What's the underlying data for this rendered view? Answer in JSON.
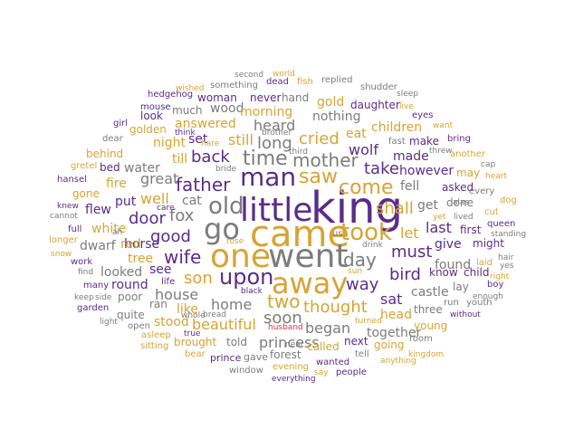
{
  "palette": {
    "gold": "#d8a334",
    "purple": "#5b2c8a",
    "gray": "#7c7c7c",
    "red": "#d8344a"
  },
  "words": [
    {
      "text": "king",
      "color": "purple"
    },
    {
      "text": "came",
      "color": "gold"
    },
    {
      "text": "little",
      "color": "purple"
    },
    {
      "text": "went",
      "color": "gray"
    },
    {
      "text": "one",
      "color": "gold"
    },
    {
      "text": "go",
      "color": "gray"
    },
    {
      "text": "away",
      "color": "gold"
    },
    {
      "text": "man",
      "color": "purple"
    },
    {
      "text": "took",
      "color": "gold"
    },
    {
      "text": "old",
      "color": "gray"
    },
    {
      "text": "upon",
      "color": "purple"
    },
    {
      "text": "time",
      "color": "gray"
    },
    {
      "text": "saw",
      "color": "gold"
    },
    {
      "text": "come",
      "color": "gold"
    },
    {
      "text": "father",
      "color": "purple"
    },
    {
      "text": "mother",
      "color": "gray"
    },
    {
      "text": "day",
      "color": "gray"
    },
    {
      "text": "wife",
      "color": "purple"
    },
    {
      "text": "two",
      "color": "gold"
    },
    {
      "text": "good",
      "color": "purple"
    },
    {
      "text": "thought",
      "color": "gold"
    },
    {
      "text": "back",
      "color": "purple"
    },
    {
      "text": "long",
      "color": "gray"
    },
    {
      "text": "take",
      "color": "purple"
    },
    {
      "text": "shall",
      "color": "gold"
    },
    {
      "text": "cried",
      "color": "gold"
    },
    {
      "text": "way",
      "color": "purple"
    },
    {
      "text": "fox",
      "color": "gray"
    },
    {
      "text": "door",
      "color": "purple"
    },
    {
      "text": "must",
      "color": "purple"
    },
    {
      "text": "bird",
      "color": "purple"
    },
    {
      "text": "son",
      "color": "gold"
    },
    {
      "text": "soon",
      "color": "gray"
    },
    {
      "text": "house",
      "color": "gray"
    },
    {
      "text": "home",
      "color": "gray"
    },
    {
      "text": "beautiful",
      "color": "gold"
    },
    {
      "text": "wolf",
      "color": "purple"
    },
    {
      "text": "great",
      "color": "gray"
    },
    {
      "text": "well",
      "color": "gold"
    },
    {
      "text": "let",
      "color": "gold"
    },
    {
      "text": "sat",
      "color": "purple"
    },
    {
      "text": "last",
      "color": "purple"
    },
    {
      "text": "still",
      "color": "gold"
    },
    {
      "text": "heard",
      "color": "gray"
    },
    {
      "text": "began",
      "color": "gray"
    },
    {
      "text": "princess",
      "color": "gray"
    },
    {
      "text": "together",
      "color": "gray"
    },
    {
      "text": "however",
      "color": "purple"
    },
    {
      "text": "see",
      "color": "purple"
    },
    {
      "text": "like",
      "color": "gold"
    },
    {
      "text": "made",
      "color": "purple"
    },
    {
      "text": "fell",
      "color": "gray"
    },
    {
      "text": "nothing",
      "color": "gray"
    },
    {
      "text": "answered",
      "color": "gold"
    },
    {
      "text": "set",
      "color": "purple"
    },
    {
      "text": "put",
      "color": "purple"
    },
    {
      "text": "tree",
      "color": "gold"
    },
    {
      "text": "cat",
      "color": "gray"
    },
    {
      "text": "get",
      "color": "gray"
    },
    {
      "text": "give",
      "color": "purple"
    },
    {
      "text": "found",
      "color": "gray"
    },
    {
      "text": "head",
      "color": "gold"
    },
    {
      "text": "castle",
      "color": "gray"
    },
    {
      "text": "stood",
      "color": "gold"
    },
    {
      "text": "wood",
      "color": "gray"
    },
    {
      "text": "morning",
      "color": "gold"
    },
    {
      "text": "eat",
      "color": "gold"
    },
    {
      "text": "gold",
      "color": "gold"
    },
    {
      "text": "night",
      "color": "gold"
    },
    {
      "text": "till",
      "color": "gold"
    },
    {
      "text": "water",
      "color": "gray"
    },
    {
      "text": "horse",
      "color": "purple"
    },
    {
      "text": "red",
      "color": "gold"
    },
    {
      "text": "round",
      "color": "purple"
    },
    {
      "text": "looked",
      "color": "gray"
    },
    {
      "text": "dwarf",
      "color": "gray"
    },
    {
      "text": "white",
      "color": "gold"
    },
    {
      "text": "flew",
      "color": "purple"
    },
    {
      "text": "fire",
      "color": "gold"
    },
    {
      "text": "children",
      "color": "gold"
    },
    {
      "text": "make",
      "color": "purple"
    },
    {
      "text": "done",
      "color": "gray"
    },
    {
      "text": "first",
      "color": "purple"
    },
    {
      "text": "might",
      "color": "purple"
    },
    {
      "text": "asked",
      "color": "purple"
    },
    {
      "text": "three",
      "color": "gray"
    },
    {
      "text": "young",
      "color": "gold"
    },
    {
      "text": "next",
      "color": "purple"
    },
    {
      "text": "going",
      "color": "gold"
    },
    {
      "text": "called",
      "color": "gold"
    },
    {
      "text": "told",
      "color": "gray"
    },
    {
      "text": "brought",
      "color": "gold"
    },
    {
      "text": "forest",
      "color": "gray"
    },
    {
      "text": "daughter",
      "color": "purple"
    },
    {
      "text": "never",
      "color": "purple"
    },
    {
      "text": "woman",
      "color": "purple"
    },
    {
      "text": "much",
      "color": "gray"
    },
    {
      "text": "quite",
      "color": "gray"
    },
    {
      "text": "golden",
      "color": "gold"
    },
    {
      "text": "look",
      "color": "purple"
    },
    {
      "text": "behind",
      "color": "gold"
    },
    {
      "text": "bed",
      "color": "purple"
    },
    {
      "text": "gone",
      "color": "gold"
    },
    {
      "text": "poor",
      "color": "gray"
    },
    {
      "text": "ran",
      "color": "gray"
    },
    {
      "text": "life",
      "color": "purple"
    },
    {
      "text": "open",
      "color": "gray"
    },
    {
      "text": "lay",
      "color": "gray"
    },
    {
      "text": "child",
      "color": "purple"
    },
    {
      "text": "know",
      "color": "purple"
    },
    {
      "text": "hand",
      "color": "gray"
    },
    {
      "text": "something",
      "color": "gray"
    },
    {
      "text": "hedgehog",
      "color": "purple"
    },
    {
      "text": "mouse",
      "color": "purple"
    },
    {
      "text": "wished",
      "color": "gold"
    },
    {
      "text": "dead",
      "color": "purple"
    },
    {
      "text": "fish",
      "color": "gold"
    },
    {
      "text": "replied",
      "color": "gray"
    },
    {
      "text": "shudder",
      "color": "gray"
    },
    {
      "text": "sleep",
      "color": "gray"
    },
    {
      "text": "second",
      "color": "gray"
    },
    {
      "text": "world",
      "color": "gold"
    },
    {
      "text": "eyes",
      "color": "purple"
    },
    {
      "text": "want",
      "color": "gold"
    },
    {
      "text": "live",
      "color": "gold"
    },
    {
      "text": "fast",
      "color": "gray"
    },
    {
      "text": "bring",
      "color": "purple"
    },
    {
      "text": "another",
      "color": "gold"
    },
    {
      "text": "cap",
      "color": "gray"
    },
    {
      "text": "heart",
      "color": "gold"
    },
    {
      "text": "may",
      "color": "gold"
    },
    {
      "text": "every",
      "color": "gray"
    },
    {
      "text": "dog",
      "color": "gold"
    },
    {
      "text": "cut",
      "color": "gold"
    },
    {
      "text": "queen",
      "color": "purple"
    },
    {
      "text": "standing",
      "color": "gray"
    },
    {
      "text": "hair",
      "color": "gray"
    },
    {
      "text": "yes",
      "color": "gray"
    },
    {
      "text": "laid",
      "color": "gold"
    },
    {
      "text": "boy",
      "color": "purple"
    },
    {
      "text": "right",
      "color": "gold"
    },
    {
      "text": "enough",
      "color": "gray"
    },
    {
      "text": "youth",
      "color": "gray"
    },
    {
      "text": "without",
      "color": "purple"
    },
    {
      "text": "run",
      "color": "gray"
    },
    {
      "text": "threw",
      "color": "gray"
    },
    {
      "text": "alas",
      "color": "gray"
    },
    {
      "text": "lived",
      "color": "gray"
    },
    {
      "text": "yet",
      "color": "gold"
    },
    {
      "text": "room",
      "color": "gray"
    },
    {
      "text": "kingdom",
      "color": "gold"
    },
    {
      "text": "anything",
      "color": "gold"
    },
    {
      "text": "tell",
      "color": "gray"
    },
    {
      "text": "people",
      "color": "purple"
    },
    {
      "text": "say",
      "color": "gold"
    },
    {
      "text": "wanted",
      "color": "purple"
    },
    {
      "text": "evening",
      "color": "gold"
    },
    {
      "text": "everything",
      "color": "purple"
    },
    {
      "text": "window",
      "color": "gray"
    },
    {
      "text": "gave",
      "color": "gray"
    },
    {
      "text": "prince",
      "color": "purple"
    },
    {
      "text": "near",
      "color": "gray"
    },
    {
      "text": "husband",
      "color": "red"
    },
    {
      "text": "turned",
      "color": "gold"
    },
    {
      "text": "drink",
      "color": "gray"
    },
    {
      "text": "sun",
      "color": "gold"
    },
    {
      "text": "us",
      "color": "gray"
    },
    {
      "text": "rose",
      "color": "gold"
    },
    {
      "text": "black",
      "color": "purple"
    },
    {
      "text": "bread",
      "color": "gray"
    },
    {
      "text": "true",
      "color": "purple"
    },
    {
      "text": "whole",
      "color": "gray"
    },
    {
      "text": "bear",
      "color": "gold"
    },
    {
      "text": "asleep",
      "color": "gold"
    },
    {
      "text": "sitting",
      "color": "gold"
    },
    {
      "text": "light",
      "color": "gray"
    },
    {
      "text": "garden",
      "color": "purple"
    },
    {
      "text": "keep",
      "color": "gray"
    },
    {
      "text": "side",
      "color": "gray"
    },
    {
      "text": "many",
      "color": "purple"
    },
    {
      "text": "find",
      "color": "gray"
    },
    {
      "text": "work",
      "color": "purple"
    },
    {
      "text": "ah",
      "color": "gray"
    },
    {
      "text": "full",
      "color": "purple"
    },
    {
      "text": "longer",
      "color": "gold"
    },
    {
      "text": "snow",
      "color": "gold"
    },
    {
      "text": "cannot",
      "color": "gray"
    },
    {
      "text": "knew",
      "color": "purple"
    },
    {
      "text": "hansel",
      "color": "purple"
    },
    {
      "text": "gretel",
      "color": "gold"
    },
    {
      "text": "dear",
      "color": "gray"
    },
    {
      "text": "girl",
      "color": "purple"
    },
    {
      "text": "care",
      "color": "purple"
    },
    {
      "text": "bride",
      "color": "gray"
    },
    {
      "text": "think",
      "color": "purple"
    },
    {
      "text": "hare",
      "color": "gold"
    },
    {
      "text": "brother",
      "color": "gray"
    },
    {
      "text": "third",
      "color": "gray"
    }
  ]
}
